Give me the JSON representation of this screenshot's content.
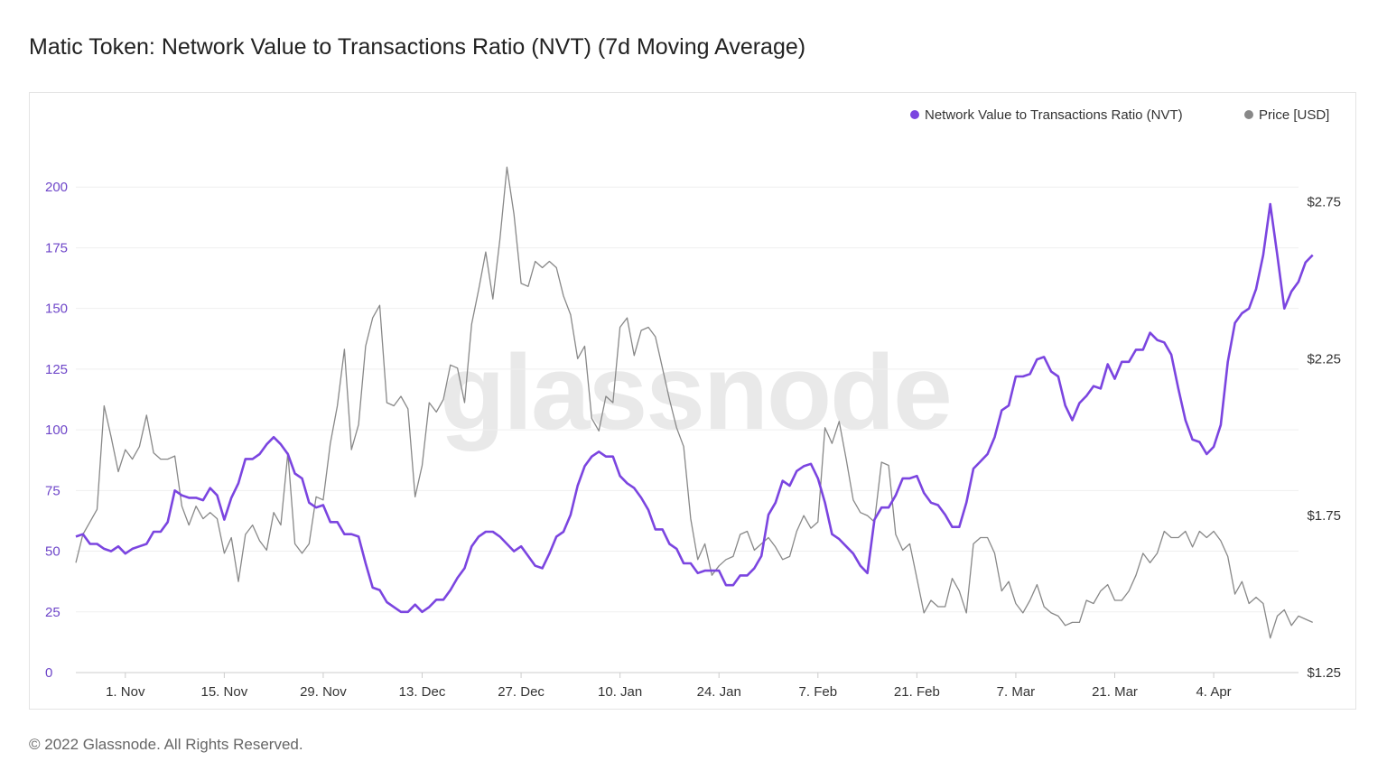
{
  "header": {
    "title": "Matic Token: Network Value to Transactions Ratio (NVT) (7d Moving Average)"
  },
  "footer": {
    "copyright": "© 2022 Glassnode. All Rights Reserved."
  },
  "watermark": "glassnode",
  "colors": {
    "nvt": "#7b45e0",
    "price": "#888888",
    "grid": "#efefef",
    "axis": "#cccccc"
  },
  "chart_data": {
    "type": "line",
    "title": "Matic Token: Network Value to Transactions Ratio (NVT) (7d Moving Average)",
    "x_range": [
      "2021-10-25",
      "2022-04-16"
    ],
    "x_ticks": [
      {
        "date": "2021-11-01",
        "label": "1. Nov"
      },
      {
        "date": "2021-11-15",
        "label": "15. Nov"
      },
      {
        "date": "2021-11-29",
        "label": "29. Nov"
      },
      {
        "date": "2021-12-13",
        "label": "13. Dec"
      },
      {
        "date": "2021-12-27",
        "label": "27. Dec"
      },
      {
        "date": "2022-01-10",
        "label": "10. Jan"
      },
      {
        "date": "2022-01-24",
        "label": "24. Jan"
      },
      {
        "date": "2022-02-07",
        "label": "7. Feb"
      },
      {
        "date": "2022-02-21",
        "label": "21. Feb"
      },
      {
        "date": "2022-03-07",
        "label": "7. Mar"
      },
      {
        "date": "2022-03-21",
        "label": "21. Mar"
      },
      {
        "date": "2022-04-04",
        "label": "4. Apr"
      }
    ],
    "y_left": {
      "min": 0,
      "max": 225,
      "ticks": [
        0,
        25,
        50,
        75,
        100,
        125,
        150,
        175,
        200
      ]
    },
    "y_right": {
      "min": 1.25,
      "max": 2.99,
      "ticks": [
        {
          "value": 1.25,
          "label": "$1.25"
        },
        {
          "value": 1.75,
          "label": "$1.75"
        },
        {
          "value": 2.25,
          "label": "$2.25"
        },
        {
          "value": 2.75,
          "label": "$2.75"
        }
      ]
    },
    "legend": {
      "position": "top-right"
    },
    "series": [
      {
        "name": "Network Value to Transactions Ratio (NVT)",
        "axis": "left",
        "start": "2021-10-25",
        "step_days": 1,
        "values": [
          56,
          57,
          53,
          53,
          51,
          50,
          52,
          49,
          51,
          52,
          53,
          58,
          58,
          62,
          75,
          73,
          72,
          72,
          71,
          76,
          73,
          63,
          72,
          78,
          88,
          88,
          90,
          94,
          97,
          94,
          90,
          82,
          80,
          70,
          68,
          69,
          62,
          62,
          57,
          57,
          56,
          45,
          35,
          34,
          29,
          27,
          25,
          25,
          28,
          25,
          27,
          30,
          30,
          34,
          39,
          43,
          52,
          56,
          58,
          58,
          56,
          53,
          50,
          52,
          48,
          44,
          43,
          49,
          56,
          58,
          65,
          77,
          85,
          89,
          91,
          89,
          89,
          81,
          78,
          76,
          72,
          67,
          59,
          59,
          53,
          51,
          45,
          45,
          41,
          42,
          42,
          42,
          36,
          36,
          40,
          40,
          43,
          48,
          65,
          70,
          79,
          77,
          83,
          85,
          86,
          80,
          70,
          57,
          55,
          52,
          49,
          44,
          41,
          63,
          68,
          68,
          73,
          80,
          80,
          81,
          74,
          70,
          69,
          65,
          60,
          60,
          70,
          84,
          87,
          90,
          97,
          108,
          110,
          122,
          122,
          123,
          129,
          130,
          124,
          122,
          110,
          104,
          111,
          114,
          118,
          117,
          127,
          121,
          128,
          128,
          133,
          133,
          140,
          137,
          136,
          131,
          117,
          104,
          96,
          95,
          90,
          93,
          102,
          128,
          144,
          148,
          150,
          158,
          172,
          193,
          172,
          150,
          157,
          161,
          169,
          172
        ]
      },
      {
        "name": "Price [USD]",
        "axis": "right",
        "start": "2021-10-25",
        "step_days": 1,
        "values": [
          1.6,
          1.69,
          1.73,
          1.77,
          2.1,
          2.0,
          1.89,
          1.96,
          1.93,
          1.97,
          2.07,
          1.95,
          1.93,
          1.93,
          1.94,
          1.78,
          1.72,
          1.78,
          1.74,
          1.76,
          1.74,
          1.63,
          1.68,
          1.54,
          1.69,
          1.72,
          1.67,
          1.64,
          1.76,
          1.72,
          1.95,
          1.66,
          1.63,
          1.66,
          1.81,
          1.8,
          1.98,
          2.1,
          2.28,
          1.96,
          2.04,
          2.29,
          2.38,
          2.42,
          2.11,
          2.1,
          2.13,
          2.09,
          1.81,
          1.91,
          2.11,
          2.08,
          2.12,
          2.23,
          2.22,
          2.11,
          2.36,
          2.47,
          2.59,
          2.44,
          2.63,
          2.86,
          2.71,
          2.49,
          2.48,
          2.56,
          2.54,
          2.56,
          2.54,
          2.45,
          2.39,
          2.25,
          2.29,
          2.06,
          2.02,
          2.13,
          2.11,
          2.35,
          2.38,
          2.26,
          2.34,
          2.35,
          2.32,
          2.22,
          2.12,
          2.03,
          1.97,
          1.74,
          1.61,
          1.66,
          1.56,
          1.59,
          1.61,
          1.62,
          1.69,
          1.7,
          1.64,
          1.66,
          1.68,
          1.65,
          1.61,
          1.62,
          1.7,
          1.75,
          1.71,
          1.73,
          2.03,
          1.98,
          2.05,
          1.93,
          1.8,
          1.76,
          1.75,
          1.73,
          1.92,
          1.91,
          1.69,
          1.64,
          1.66,
          1.55,
          1.44,
          1.48,
          1.46,
          1.46,
          1.55,
          1.51,
          1.44,
          1.66,
          1.68,
          1.68,
          1.63,
          1.51,
          1.54,
          1.47,
          1.44,
          1.48,
          1.53,
          1.46,
          1.44,
          1.43,
          1.4,
          1.41,
          1.41,
          1.48,
          1.47,
          1.51,
          1.53,
          1.48,
          1.48,
          1.51,
          1.56,
          1.63,
          1.6,
          1.63,
          1.7,
          1.68,
          1.68,
          1.7,
          1.65,
          1.7,
          1.68,
          1.7,
          1.67,
          1.62,
          1.5,
          1.54,
          1.47,
          1.49,
          1.47,
          1.36,
          1.43,
          1.45,
          1.4,
          1.43,
          1.42,
          1.41
        ]
      }
    ]
  }
}
